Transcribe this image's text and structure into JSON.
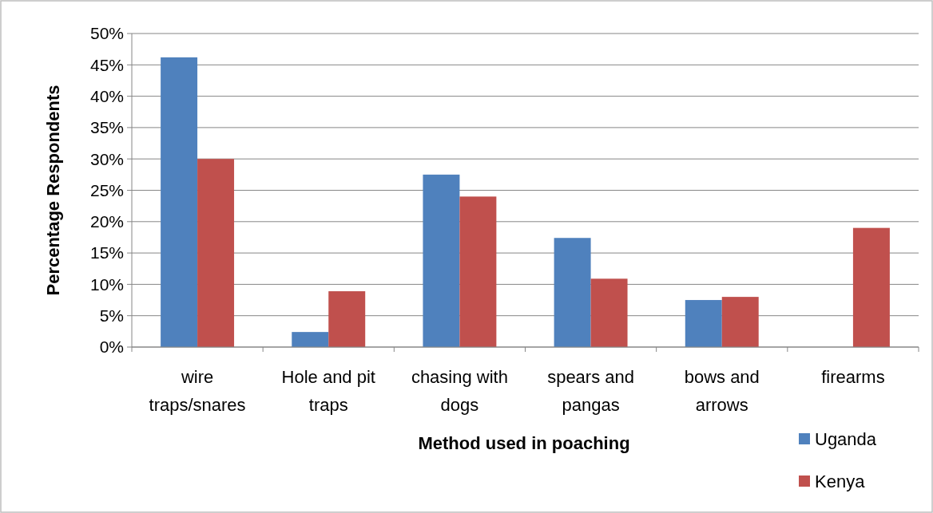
{
  "chart_data": {
    "type": "bar",
    "xlabel": "Method used in poaching",
    "ylabel": "Percentage Respondents",
    "categories": [
      "wire traps/snares",
      "Hole and pit traps",
      "chasing with dogs",
      "spears and pangas",
      "bows and arrows",
      "firearms"
    ],
    "series": [
      {
        "name": "Uganda",
        "color": "#4f81bd",
        "values": [
          46.2,
          2.4,
          27.5,
          17.4,
          7.5,
          0
        ]
      },
      {
        "name": "Kenya",
        "color": "#c0504d",
        "values": [
          30,
          8.9,
          24,
          10.9,
          8,
          19
        ]
      }
    ],
    "ylim": [
      0,
      50
    ],
    "yticks": [
      {
        "value": 0,
        "label": "0%"
      },
      {
        "value": 5,
        "label": "5%"
      },
      {
        "value": 10,
        "label": "10%"
      },
      {
        "value": 15,
        "label": "15%"
      },
      {
        "value": 20,
        "label": "20%"
      },
      {
        "value": 25,
        "label": "25%"
      },
      {
        "value": 30,
        "label": "30%"
      },
      {
        "value": 35,
        "label": "35%"
      },
      {
        "value": 40,
        "label": "40%"
      },
      {
        "value": 45,
        "label": "45%"
      },
      {
        "value": 50,
        "label": "50%"
      }
    ],
    "grid": "y",
    "legend": "bottom right"
  }
}
